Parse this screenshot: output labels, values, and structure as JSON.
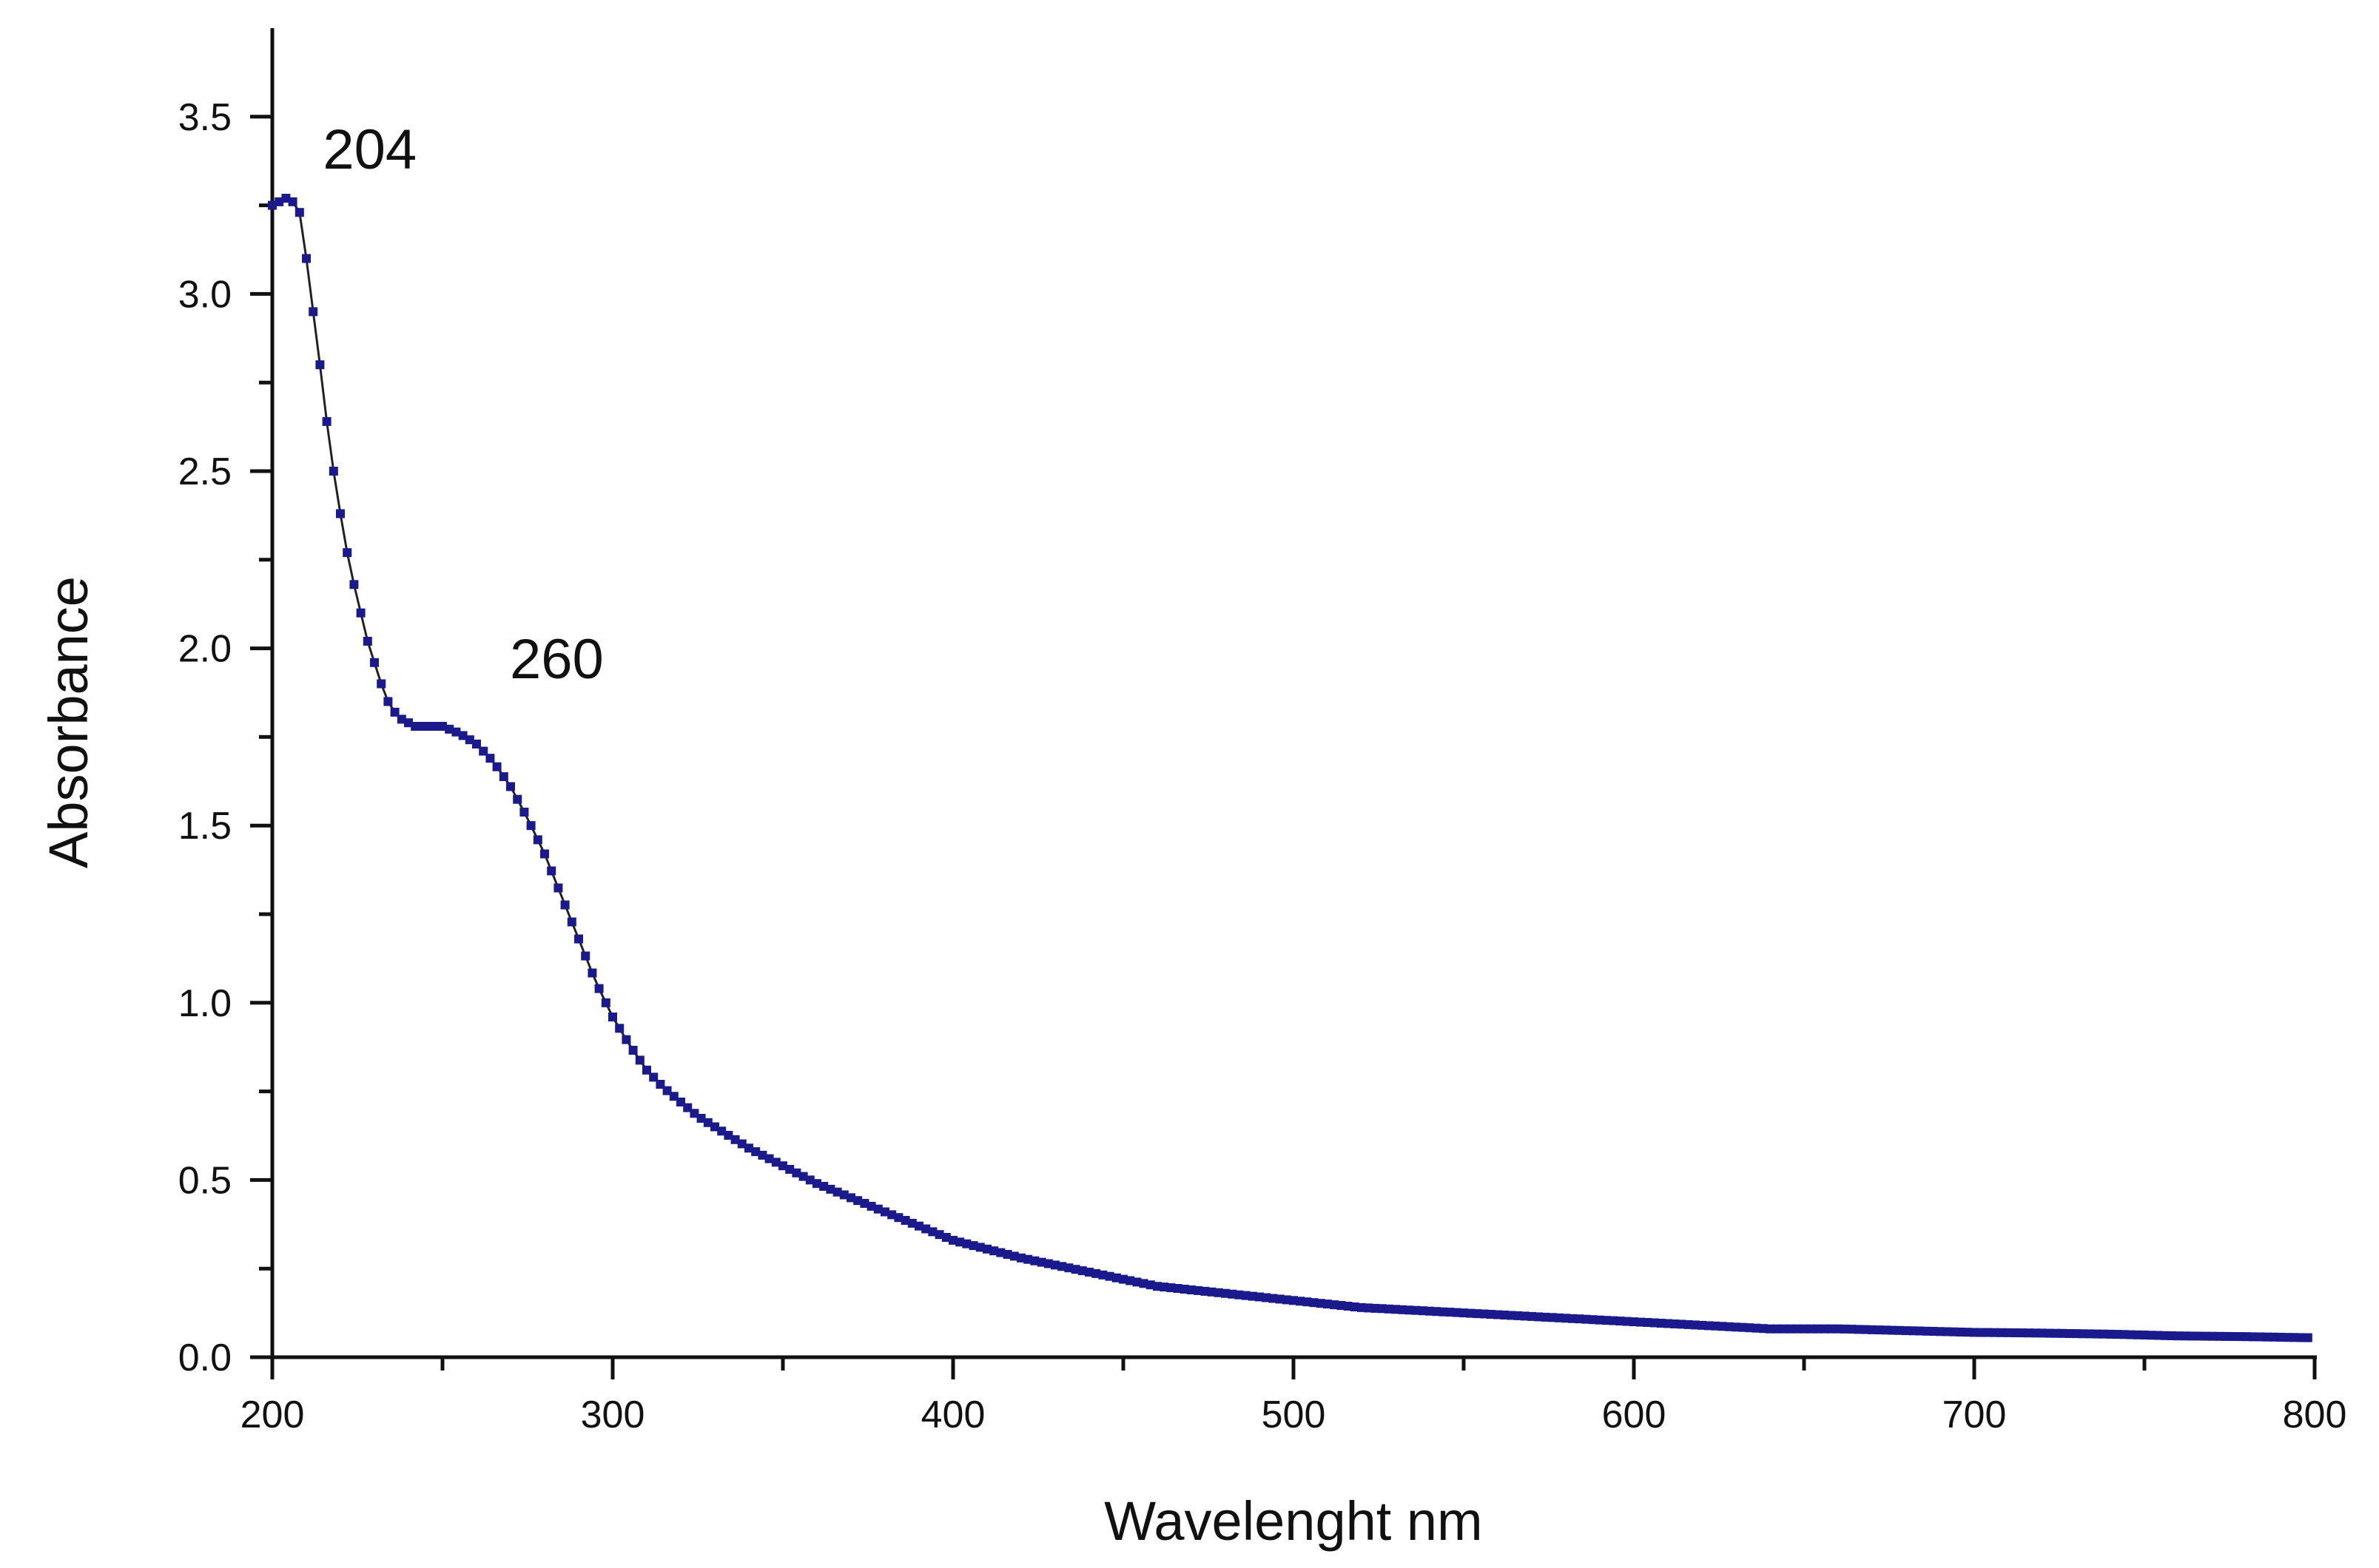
{
  "colors": {
    "series": "#1a1a8c",
    "line": "#222222",
    "axis": "#111111"
  },
  "chart_data": {
    "type": "scatter",
    "title": "",
    "xlabel": "Wavelenght nm",
    "ylabel": "Absorbance",
    "xlim": [
      200,
      800
    ],
    "ylim": [
      0.0,
      3.75
    ],
    "x_ticks": [
      200,
      300,
      400,
      500,
      600,
      700,
      800
    ],
    "x_tick_labels": [
      "200",
      "300",
      "400",
      "500",
      "600",
      "700",
      "800"
    ],
    "y_ticks": [
      0.0,
      0.5,
      1.0,
      1.5,
      2.0,
      2.5,
      3.0,
      3.5
    ],
    "y_tick_labels": [
      "0.0",
      "0.5",
      "1.0",
      "1.5",
      "2.0",
      "2.5",
      "3.0",
      "3.5"
    ],
    "grid": false,
    "legend": "none",
    "markers": "square",
    "connected": true,
    "annotations": [
      {
        "text": "204",
        "x": 204,
        "y": 3.27
      },
      {
        "text": "260",
        "x": 260,
        "y": 1.77
      }
    ],
    "series": [
      {
        "x": [
          200,
          202,
          204,
          206,
          208,
          210,
          212,
          214,
          216,
          218,
          220,
          222,
          224,
          226,
          228,
          230,
          232,
          234,
          236,
          238,
          240,
          242,
          244,
          246,
          248,
          250,
          255,
          260,
          265,
          270,
          275,
          280,
          285,
          290,
          295,
          300,
          305,
          310,
          315,
          320,
          325,
          330,
          340,
          350,
          360,
          370,
          380,
          390,
          400,
          420,
          440,
          460,
          480,
          500,
          520,
          540,
          560,
          580,
          600,
          620,
          640,
          660,
          680,
          700,
          720,
          740,
          760,
          780,
          798
        ],
        "values": [
          3.25,
          3.26,
          3.27,
          3.26,
          3.23,
          3.1,
          2.95,
          2.8,
          2.64,
          2.5,
          2.38,
          2.27,
          2.18,
          2.1,
          2.02,
          1.96,
          1.9,
          1.85,
          1.82,
          1.8,
          1.79,
          1.78,
          1.78,
          1.78,
          1.78,
          1.78,
          1.76,
          1.73,
          1.68,
          1.61,
          1.52,
          1.42,
          1.3,
          1.18,
          1.06,
          0.96,
          0.88,
          0.81,
          0.76,
          0.72,
          0.68,
          0.65,
          0.59,
          0.54,
          0.49,
          0.45,
          0.41,
          0.37,
          0.33,
          0.28,
          0.24,
          0.2,
          0.18,
          0.16,
          0.14,
          0.13,
          0.12,
          0.11,
          0.1,
          0.09,
          0.08,
          0.08,
          0.075,
          0.07,
          0.068,
          0.065,
          0.06,
          0.058,
          0.055
        ]
      }
    ]
  }
}
